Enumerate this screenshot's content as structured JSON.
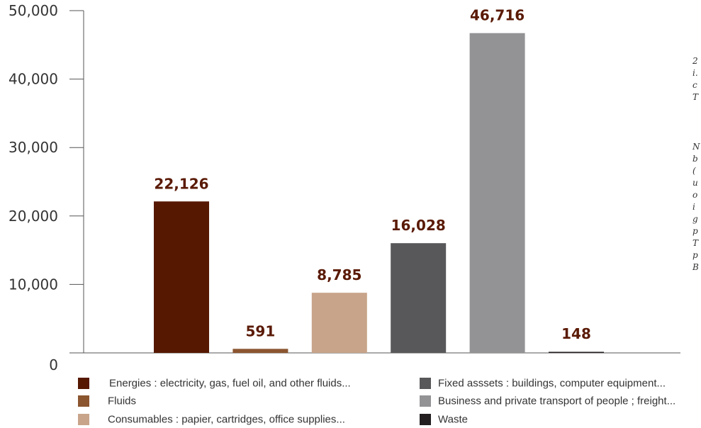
{
  "chart_data": {
    "type": "bar",
    "categories": [
      "Energies : electricity, gas, fuel oil, and other fluids...",
      "Fluids",
      "Consumables : papier, cartridges, office supplies...",
      "Fixed asssets : buildings, computer equipment...",
      "Business and private transport of people ; freight...",
      "Waste"
    ],
    "values": [
      22126,
      591,
      8785,
      16028,
      46716,
      148
    ],
    "value_labels": [
      "22,126",
      "591",
      "8,785",
      "16,028",
      "46,716",
      "148"
    ],
    "colors": [
      "#561800",
      "#8b5530",
      "#c8a48a",
      "#58585a",
      "#939395",
      "#231f20"
    ],
    "label_color": "#5a1a05",
    "yticks": [
      0,
      10000,
      20000,
      30000,
      40000,
      50000
    ],
    "ytick_labels": [
      "0",
      "10,000",
      "20,000",
      "30,000",
      "40,000",
      "50,000"
    ],
    "ylim": [
      0,
      50000
    ],
    "grid": false,
    "legend_position": "bottom",
    "legend": [
      "Energies : electricity, gas, fuel oil, and other fluids...",
      "Fluids",
      "Consumables : papier, cartridges, office supplies...",
      "Fixed asssets : buildings, computer equipment...",
      "Business and private transport of people ; freight...",
      "Waste"
    ]
  },
  "side_note": {
    "paragraph1": [
      "2",
      "i.",
      "c",
      "T"
    ],
    "paragraph2": [
      "N",
      "b",
      "(",
      "u",
      "o",
      "i",
      "g",
      "p",
      "T",
      "p",
      "B"
    ]
  }
}
